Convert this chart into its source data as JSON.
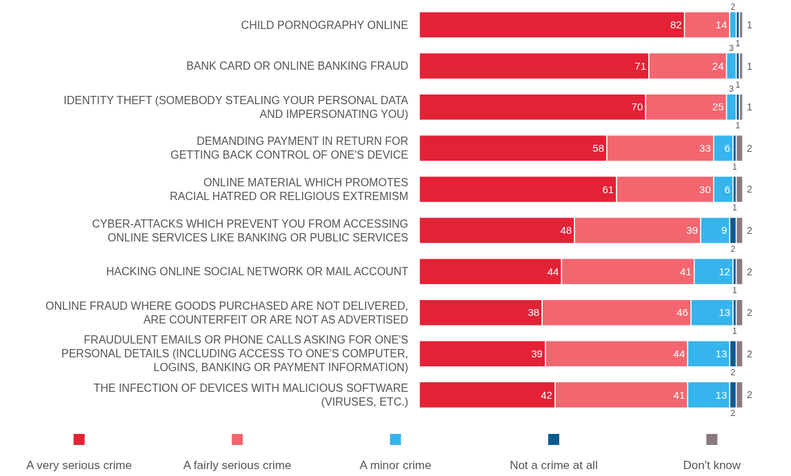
{
  "chart_data": {
    "type": "bar",
    "orientation": "horizontal",
    "stacked": true,
    "data_labels": true,
    "legend": "bottom",
    "categories": [
      "CHILD PORNOGRAPHY ONLINE",
      "BANK CARD OR ONLINE BANKING FRAUD",
      "IDENTITY THEFT (SOMEBODY STEALING YOUR PERSONAL DATA\nAND IMPERSONATING YOU)",
      "DEMANDING PAYMENT IN RETURN FOR\nGETTING BACK CONTROL OF ONE'S DEVICE",
      "ONLINE MATERIAL WHICH PROMOTES\nRACIAL HATRED OR RELIGIOUS EXTREMISM",
      "CYBER-ATTACKS WHICH PREVENT YOU FROM ACCESSING\nONLINE SERVICES LIKE BANKING OR PUBLIC SERVICES",
      "HACKING ONLINE SOCIAL NETWORK OR MAIL ACCOUNT",
      "ONLINE FRAUD WHERE GOODS PURCHASED ARE NOT DELIVERED,\nARE COUNTERFEIT OR ARE NOT AS ADVERTISED",
      "FRAUDULENT EMAILS OR PHONE CALLS ASKING FOR ONE'S\nPERSONAL DETAILS (INCLUDING ACCESS TO ONE'S COMPUTER,\nLOGINS, BANKING OR PAYMENT INFORMATION)",
      "THE INFECTION OF DEVICES WITH MALICIOUS SOFTWARE\n(VIRUSES, ETC.)"
    ],
    "series": [
      {
        "name": "A very serious crime",
        "color": "#e32236",
        "values": [
          82,
          71,
          70,
          58,
          61,
          48,
          44,
          38,
          39,
          42
        ]
      },
      {
        "name": "A fairly serious crime",
        "color": "#f4666f",
        "values": [
          14,
          24,
          25,
          33,
          30,
          39,
          41,
          46,
          44,
          41
        ]
      },
      {
        "name": "A minor crime",
        "color": "#36b4ec",
        "values": [
          2,
          3,
          3,
          6,
          6,
          9,
          12,
          13,
          13,
          13
        ]
      },
      {
        "name": "Not a crime at all",
        "color": "#0b5b8f",
        "values": [
          1,
          1,
          1,
          1,
          1,
          2,
          1,
          1,
          2,
          2
        ]
      },
      {
        "name": "Don't know",
        "color": "#8a7a80",
        "values": [
          1,
          1,
          1,
          2,
          2,
          2,
          2,
          2,
          2,
          2
        ]
      }
    ]
  }
}
